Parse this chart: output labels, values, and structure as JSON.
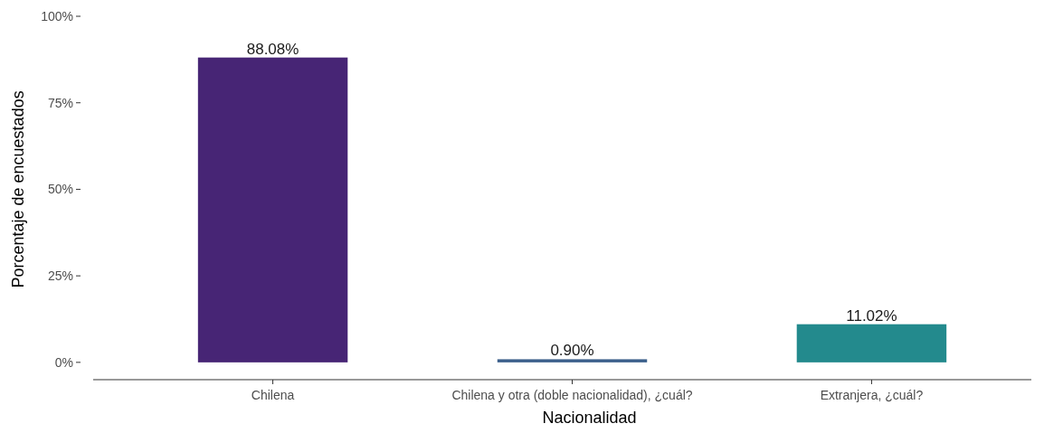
{
  "chart_data": {
    "type": "bar",
    "xlabel": "Nacionalidad",
    "ylabel": "Porcentaje de encuestados",
    "categories": [
      "Chilena",
      "Chilena y otra (doble nacionalidad), ¿cuál?",
      "Extranjera, ¿cuál?"
    ],
    "values": [
      88.08,
      0.9,
      11.02
    ],
    "colors": [
      "#472575",
      "#3b5f8b",
      "#238a8d"
    ],
    "value_labels": [
      "88.08%",
      "0.90%",
      "11.02%"
    ],
    "ylim": [
      -5,
      100
    ],
    "yticks": [
      {
        "value": 0,
        "label": "0%"
      },
      {
        "value": 25,
        "label": "25%"
      },
      {
        "value": 50,
        "label": "50%"
      },
      {
        "value": 75,
        "label": "75%"
      },
      {
        "value": 100,
        "label": "100%"
      }
    ],
    "grid": false
  }
}
